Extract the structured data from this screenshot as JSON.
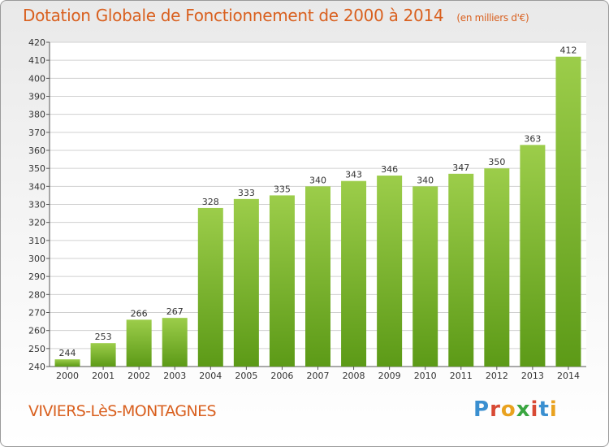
{
  "header": {
    "title": "Dotation Globale de Fonctionnement de 2000 à 2014",
    "unit": "(en milliers d'€)"
  },
  "footer": {
    "commune": "VIVIERS-LèS-MONTAGNES",
    "logo": "Proxiti"
  },
  "colors": {
    "title": "#d9601f",
    "bar_top": "#9ccd4a",
    "bar_bottom": "#5c9a17",
    "grid": "#d0d0d0"
  },
  "chart_data": {
    "type": "bar",
    "title": "Dotation Globale de Fonctionnement de 2000 à 2014",
    "subtitle": "(en milliers d'€)",
    "xlabel": "",
    "ylabel": "",
    "categories": [
      "2000",
      "2001",
      "2002",
      "2003",
      "2004",
      "2005",
      "2006",
      "2007",
      "2008",
      "2009",
      "2010",
      "2011",
      "2012",
      "2013",
      "2014"
    ],
    "values": [
      244,
      253,
      266,
      267,
      328,
      333,
      335,
      340,
      343,
      346,
      340,
      347,
      350,
      363,
      412
    ],
    "ylim": [
      240,
      420
    ],
    "yticks": [
      240,
      250,
      260,
      270,
      280,
      290,
      300,
      310,
      320,
      330,
      340,
      350,
      360,
      370,
      380,
      390,
      400,
      410,
      420
    ],
    "grid": true,
    "legend": "none"
  }
}
